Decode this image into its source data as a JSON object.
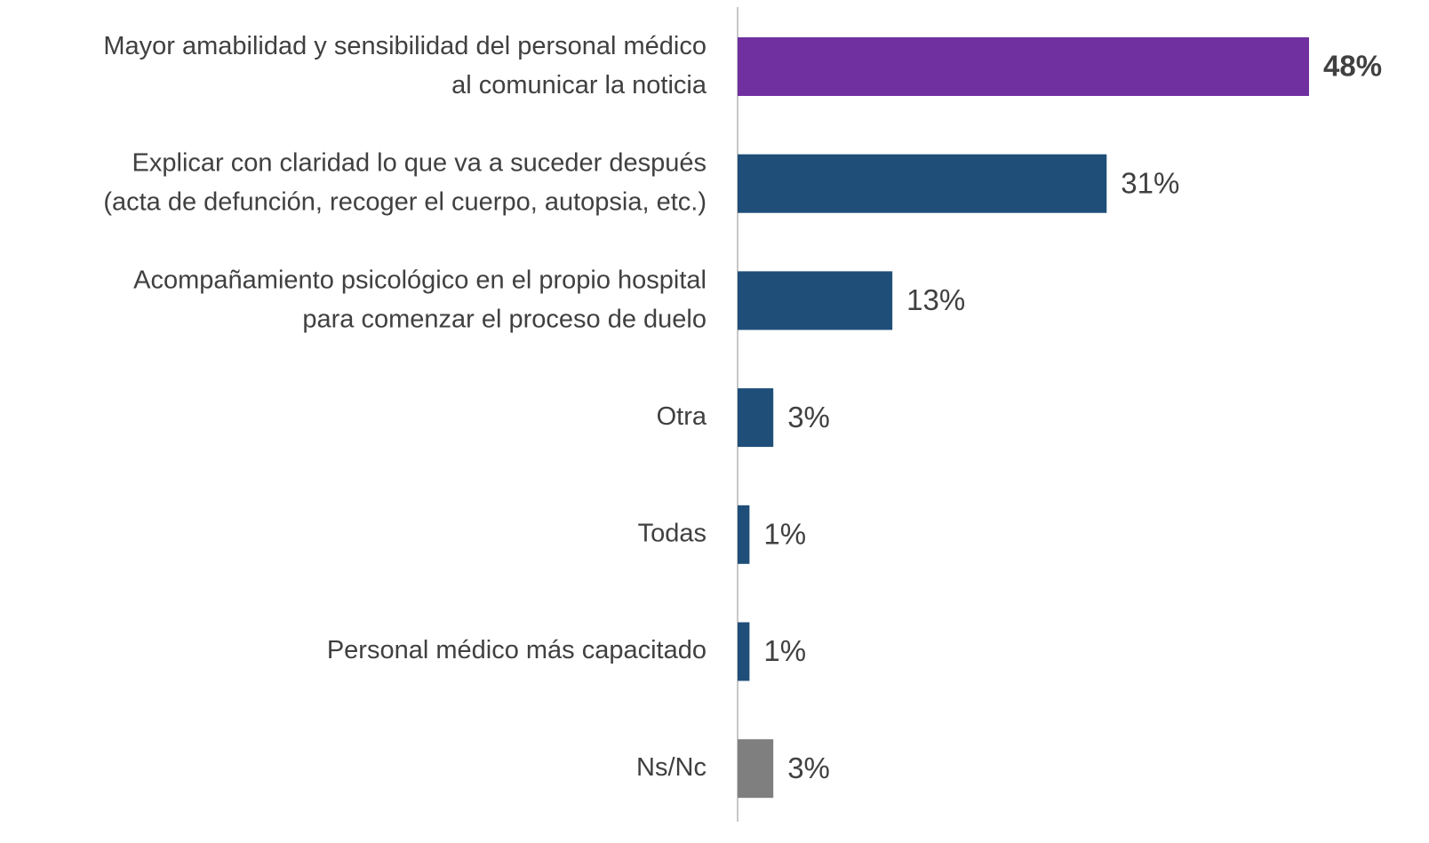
{
  "chart_data": {
    "type": "barh",
    "categories": [
      "Mayor amabilidad y sensibilidad del personal médico\nal comunicar la noticia",
      "Explicar con claridad lo que va a suceder después\n(acta de defunción, recoger el cuerpo, autopsia, etc.)",
      "Acompañamiento psicológico en el propio hospital\npara comenzar el proceso de duelo",
      "Otra",
      "Todas",
      "Personal médico más capacitado",
      "Ns/Nc"
    ],
    "values": [
      48,
      31,
      13,
      3,
      1,
      1,
      3
    ],
    "value_labels": [
      "48%",
      "31%",
      "13%",
      "3%",
      "1%",
      "1%",
      "3%"
    ],
    "colors": [
      "#7030a0",
      "#1f4e79",
      "#1f4e79",
      "#1f4e79",
      "#1f4e79",
      "#1f4e79",
      "#7f7f7f"
    ],
    "value_label_bold": [
      true,
      false,
      false,
      false,
      false,
      false,
      false
    ],
    "xlim": [
      0,
      48
    ]
  }
}
